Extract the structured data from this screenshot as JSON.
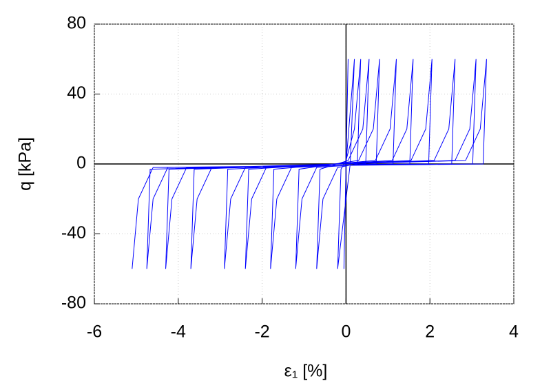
{
  "chart_data": {
    "type": "line",
    "xlabel": "ε₁ [%]",
    "ylabel": "q [kPa]",
    "x": [
      0,
      0.05,
      0.0,
      -0.05,
      0.0,
      0.2,
      0.1,
      -0.2,
      -0.12,
      0.0,
      0.2,
      0.35,
      0.27,
      -0.2,
      -0.55,
      -0.7,
      -0.62,
      0.05,
      0.4,
      0.55,
      0.47,
      -0.7,
      -1.05,
      -1.2,
      -1.12,
      0.3,
      0.65,
      0.8,
      0.72,
      -1.3,
      -1.65,
      -1.8,
      -1.72,
      0.7,
      1.05,
      1.2,
      1.12,
      -1.9,
      -2.25,
      -2.4,
      -2.32,
      1.1,
      1.45,
      1.6,
      1.52,
      -2.4,
      -2.75,
      -2.9,
      -2.82,
      1.55,
      1.9,
      2.05,
      1.97,
      -3.2,
      -3.55,
      -3.7,
      -3.62,
      2.1,
      2.45,
      2.6,
      2.52,
      -3.8,
      -4.15,
      -4.3,
      -4.22,
      2.6,
      2.95,
      3.1,
      3.02,
      -4.25,
      -4.6,
      -4.75,
      -4.67,
      2.85,
      3.2,
      3.35,
      3.27,
      -4.6,
      -4.95,
      -5.1
    ],
    "values": [
      0,
      60,
      0,
      -60,
      0,
      60,
      0,
      -60,
      -3,
      2,
      20,
      60,
      0,
      -2,
      -20,
      -60,
      -3,
      2,
      20,
      60,
      0,
      -2,
      -20,
      -60,
      -3,
      2,
      20,
      60,
      0,
      -2,
      -20,
      -60,
      -3,
      2,
      20,
      60,
      0,
      -2,
      -20,
      -60,
      -3,
      2,
      20,
      60,
      0,
      -2,
      -20,
      -60,
      -3,
      2,
      20,
      60,
      0,
      -2,
      -20,
      -60,
      -3,
      2,
      20,
      60,
      0,
      -2,
      -20,
      -60,
      -3,
      2,
      20,
      60,
      0,
      -2,
      -20,
      -60,
      -3,
      2,
      20,
      60,
      0,
      -2,
      -20,
      -60
    ],
    "color": "#0000ff",
    "xlim": [
      -6,
      4
    ],
    "xticks": [
      -6,
      -4,
      -2,
      0,
      2,
      4
    ],
    "ylim": [
      -80,
      80
    ],
    "yticks": [
      -80,
      -40,
      0,
      40,
      80
    ],
    "grid": true
  }
}
